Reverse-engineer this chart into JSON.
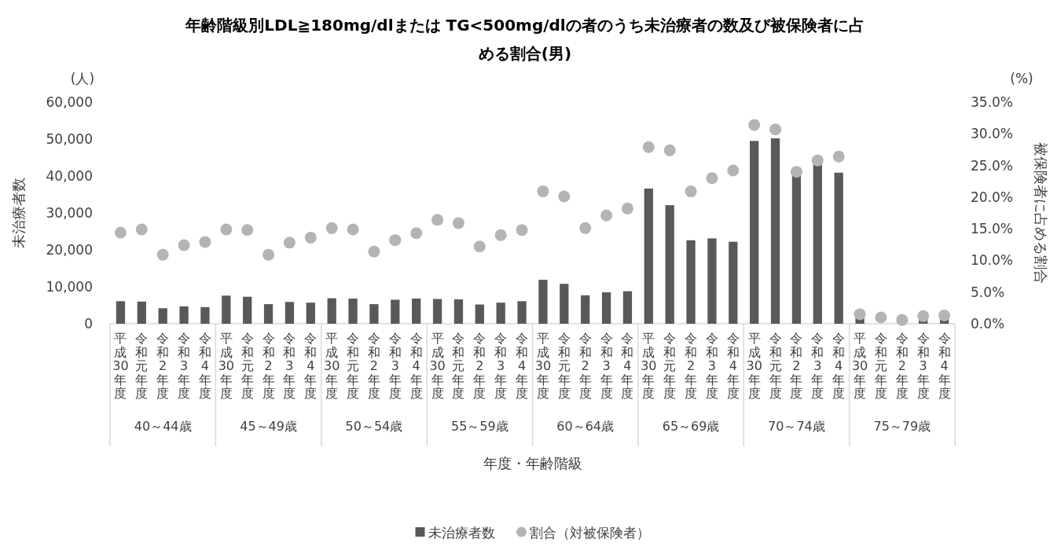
{
  "chart_data": {
    "type": "bar",
    "title": "年齢階級別LDL≧180mg/dlまたは TG<500mg/dlの者のうち未治療者の数及び被保険者に占める割合(男)",
    "xlabel": "年度・年齢階級",
    "ylabel": "未治療者数",
    "y2label": "被保険者に占める割合",
    "annotations": [
      "40～44歳",
      "45～49歳",
      "50～54歳",
      "55～59歳",
      "60～64歳",
      "65～69歳",
      "70～74歳",
      "75～79歳",
      "(人)",
      "(%)"
    ],
    "categories": [
      "平成30年度",
      "令和元年度",
      "令和2年度",
      "令和3年度",
      "令和4年度",
      "平成30年度",
      "令和元年度",
      "令和2年度",
      "令和3年度",
      "令和4年度",
      "平成30年度",
      "令和元年度",
      "令和2年度",
      "令和3年度",
      "令和4年度",
      "平成30年度",
      "令和元年度",
      "令和2年度",
      "令和3年度",
      "令和4年度",
      "平成30年度",
      "令和元年度",
      "令和2年度",
      "令和3年度",
      "令和4年度",
      "平成30年度",
      "令和元年度",
      "令和2年度",
      "令和3年度",
      "令和4年度",
      "平成30年度",
      "令和元年度",
      "令和2年度",
      "令和3年度",
      "令和4年度",
      "平成30年度",
      "令和元年度",
      "令和2年度",
      "令和3年度",
      "令和4年度"
    ],
    "series": [
      {
        "name": "未治療者数",
        "type": "bar",
        "color": "#595959",
        "values": [
          6100,
          6000,
          4200,
          4700,
          4500,
          7600,
          7300,
          5300,
          5900,
          5700,
          6900,
          6800,
          5300,
          6500,
          6800,
          6700,
          6600,
          5200,
          5700,
          6100,
          11900,
          10800,
          7700,
          8500,
          8800,
          36600,
          32100,
          22600,
          23100,
          22200,
          49500,
          50200,
          40100,
          43300,
          40900,
          1500,
          null,
          null,
          1100,
          1200
        ]
      },
      {
        "name": "割合（対被保険者）",
        "type": "scatter",
        "axis": "y2",
        "marker": "circle",
        "color": "#b4b4b4",
        "values": [
          14.4,
          14.9,
          10.9,
          12.4,
          12.9,
          14.9,
          14.8,
          10.9,
          12.8,
          13.6,
          15.1,
          14.9,
          11.4,
          13.2,
          14.3,
          16.4,
          15.9,
          12.2,
          14.0,
          14.8,
          20.9,
          20.1,
          15.1,
          17.1,
          18.2,
          27.9,
          27.4,
          20.9,
          23.0,
          24.2,
          31.4,
          30.7,
          24.0,
          25.8,
          26.4,
          1.5,
          1.0,
          0.6,
          1.2,
          1.3
        ]
      }
    ],
    "ylim": [
      0,
      60000
    ],
    "yticks": [
      0,
      {
        "value": 10000,
        "label": "10,000"
      },
      {
        "value": 20000,
        "label": "20,000"
      },
      {
        "value": 30000,
        "label": "30,000"
      },
      {
        "value": 40000,
        "label": "40,000"
      },
      {
        "value": 50000,
        "label": "50,000"
      },
      {
        "value": 60000,
        "label": "60,000"
      }
    ],
    "y2lim": [
      0,
      35
    ],
    "y2ticks": [
      {
        "value": 0,
        "label": "0.0%"
      },
      {
        "value": 5,
        "label": "5.0%"
      },
      {
        "value": 10,
        "label": "10.0%"
      },
      {
        "value": 15,
        "label": "15.0%"
      },
      {
        "value": 20,
        "label": "20.0%"
      },
      {
        "value": 25,
        "label": "25.0%"
      },
      {
        "value": 30,
        "label": "30.0%"
      },
      {
        "value": 35,
        "label": "35.0%"
      }
    ],
    "grid": false,
    "legend": "bottom"
  }
}
